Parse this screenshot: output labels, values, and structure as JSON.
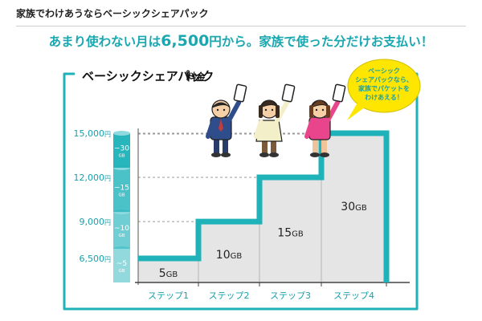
{
  "page": {
    "header_title": "家族でわけあうならベーシックシェアパック",
    "headline_pre": "あまり使わない月は",
    "headline_price": "6,500",
    "headline_post": "円から。家族で使った分だけお支払い！"
  },
  "chart_data": {
    "type": "step",
    "title": "ベーシックシェアパック",
    "title_suffix": "料金",
    "categories": [
      "ステップ1",
      "ステップ2",
      "ステップ3",
      "ステップ4"
    ],
    "series": [
      {
        "values_gb": [
          5,
          10,
          15,
          30
        ],
        "value_labels": [
          "5GB",
          "10GB",
          "15GB",
          "30GB"
        ],
        "prices_yen": [
          6500,
          9000,
          12000,
          15000
        ]
      }
    ],
    "price_ticks": [
      "6,500円",
      "9,000円",
      "12,000円",
      "15,000円"
    ],
    "capacity_ticks": [
      "~5GB",
      "~10GB",
      "~15GB",
      "~30GB"
    ],
    "speech_bubble": [
      "ベーシック",
      "シェアパックなら、",
      "家族でパケットを",
      "わけあえる！"
    ],
    "colors": {
      "teal": "#1fb2b9",
      "teal_dark": "#14a0a8",
      "headline": "#1aa7b0",
      "fill": "#e5e5e5",
      "bubble": "#ffe600"
    }
  }
}
